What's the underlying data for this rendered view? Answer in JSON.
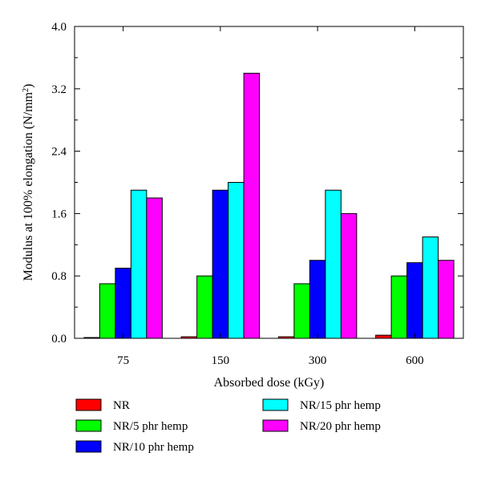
{
  "chart_data": {
    "type": "bar",
    "xlabel": "Absorbed dose (kGy)",
    "ylabel": "Modulus at  100% elongation (N/mm",
    "ylabel_sup": "2",
    "ylabel_close": ")",
    "categories": [
      "75",
      "150",
      "300",
      "600"
    ],
    "ylim": [
      0,
      4.0
    ],
    "yticks": [
      "0.0",
      "0.8",
      "1.6",
      "2.4",
      "3.2",
      "4.0"
    ],
    "grid": false,
    "legend_position": "bottom",
    "series": [
      {
        "name": "NR",
        "color": "#ff0000",
        "values": [
          0.01,
          0.02,
          0.02,
          0.04
        ]
      },
      {
        "name": "NR/5 phr hemp",
        "color": "#00ff00",
        "values": [
          0.7,
          0.8,
          0.7,
          0.8
        ]
      },
      {
        "name": "NR/10 phr hemp",
        "color": "#0000ff",
        "values": [
          0.9,
          1.9,
          1.0,
          0.97
        ]
      },
      {
        "name": "NR/15 phr hemp",
        "color": "#00ffff",
        "values": [
          1.9,
          2.0,
          1.9,
          1.3
        ]
      },
      {
        "name": "NR/20 phr hemp",
        "color": "#ff00ff",
        "values": [
          1.8,
          3.4,
          1.6,
          1.0
        ]
      }
    ]
  }
}
